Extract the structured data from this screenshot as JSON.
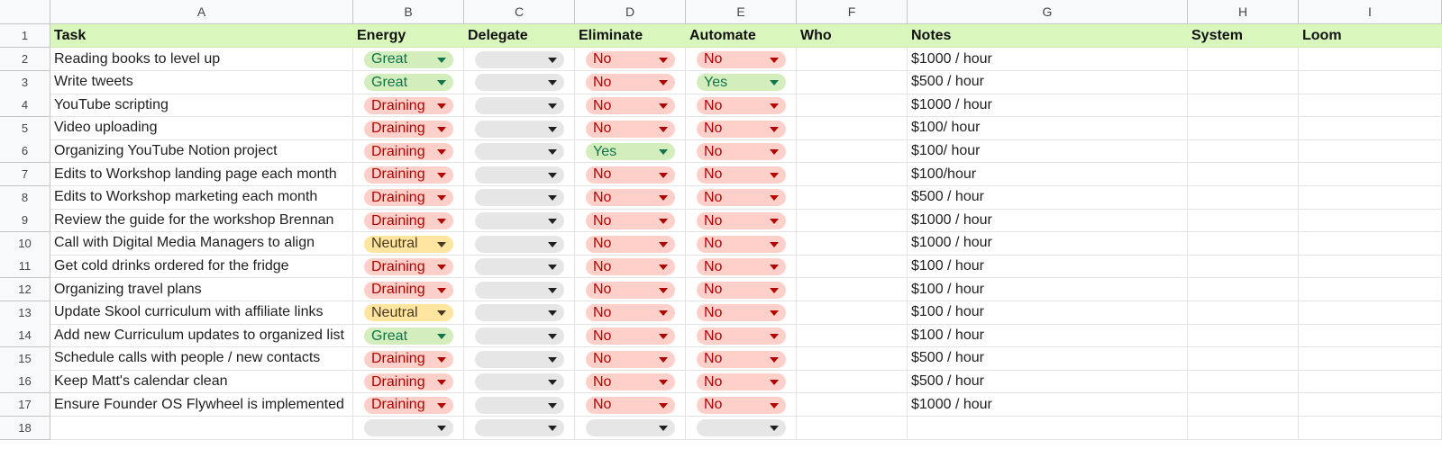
{
  "columns": [
    "A",
    "B",
    "C",
    "D",
    "E",
    "F",
    "G",
    "H",
    "I"
  ],
  "header": [
    "Task",
    "Energy",
    "Delegate",
    "Eliminate",
    "Automate",
    "Who",
    "Notes",
    "System",
    "Loom"
  ],
  "rows": [
    {
      "task": "Reading books to level up",
      "energy": "Great",
      "delegate": "",
      "eliminate": "No",
      "automate": "No",
      "who": "",
      "notes": "$1000 / hour"
    },
    {
      "task": "Write tweets",
      "energy": "Great",
      "delegate": "",
      "eliminate": "No",
      "automate": "Yes",
      "who": "",
      "notes": "$500 / hour"
    },
    {
      "task": "YouTube scripting",
      "energy": "Draining",
      "delegate": "",
      "eliminate": "No",
      "automate": "No",
      "who": "",
      "notes": "$1000 / hour"
    },
    {
      "task": "Video uploading",
      "energy": "Draining",
      "delegate": "",
      "eliminate": "No",
      "automate": "No",
      "who": "",
      "notes": "$100/ hour"
    },
    {
      "task": "Organizing YouTube Notion project",
      "energy": "Draining",
      "delegate": "",
      "eliminate": "Yes",
      "automate": "No",
      "who": "",
      "notes": "$100/ hour"
    },
    {
      "task": "Edits to Workshop landing page each month",
      "energy": "Draining",
      "delegate": "",
      "eliminate": "No",
      "automate": "No",
      "who": "",
      "notes": "$100/hour"
    },
    {
      "task": "Edits to Workshop marketing each month",
      "energy": "Draining",
      "delegate": "",
      "eliminate": "No",
      "automate": "No",
      "who": "",
      "notes": "$500 / hour"
    },
    {
      "task": "Review the guide for the workshop Brennan",
      "energy": "Draining",
      "delegate": "",
      "eliminate": "No",
      "automate": "No",
      "who": "",
      "notes": "$1000 / hour"
    },
    {
      "task": "Call with Digital Media Managers to align",
      "energy": "Neutral",
      "delegate": "",
      "eliminate": "No",
      "automate": "No",
      "who": "",
      "notes": "$1000 / hour"
    },
    {
      "task": "Get cold drinks ordered for the fridge",
      "energy": "Draining",
      "delegate": "",
      "eliminate": "No",
      "automate": "No",
      "who": "",
      "notes": "$100 / hour"
    },
    {
      "task": "Organizing travel plans",
      "energy": "Draining",
      "delegate": "",
      "eliminate": "No",
      "automate": "No",
      "who": "",
      "notes": "$100 / hour"
    },
    {
      "task": "Update Skool curriculum with affiliate links",
      "energy": "Neutral",
      "delegate": "",
      "eliminate": "No",
      "automate": "No",
      "who": "",
      "notes": "$100 / hour"
    },
    {
      "task": "Add new Curriculum updates to organized list",
      "energy": "Great",
      "delegate": "",
      "eliminate": "No",
      "automate": "No",
      "who": "",
      "notes": "$100 / hour"
    },
    {
      "task": "Schedule calls with people / new contacts",
      "energy": "Draining",
      "delegate": "",
      "eliminate": "No",
      "automate": "No",
      "who": "",
      "notes": "$500 / hour"
    },
    {
      "task": "Keep Matt's calendar clean",
      "energy": "Draining",
      "delegate": "",
      "eliminate": "No",
      "automate": "No",
      "who": "",
      "notes": "$500 / hour"
    },
    {
      "task": "Ensure Founder OS Flywheel is implemented",
      "energy": "Draining",
      "delegate": "",
      "eliminate": "No",
      "automate": "No",
      "who": "",
      "notes": "$1000 / hour"
    },
    {
      "task": "",
      "energy": "",
      "delegate": "",
      "eliminate": "",
      "automate": "",
      "who": "",
      "notes": ""
    }
  ],
  "chip_colors": {
    "Great": {
      "bg": "#d4edbc",
      "fg": "#11734b"
    },
    "Yes": {
      "bg": "#d4edbc",
      "fg": "#11734b"
    },
    "Draining": {
      "bg": "#ffcfc9",
      "fg": "#b10202"
    },
    "No": {
      "bg": "#ffcfc9",
      "fg": "#b10202"
    },
    "Neutral": {
      "bg": "#ffe5a0",
      "fg": "#473821"
    },
    "": {
      "bg": "#e6e6e6",
      "fg": "#1f1f1f"
    }
  },
  "colors": {
    "header_row_bg": "#d9f7bd"
  }
}
